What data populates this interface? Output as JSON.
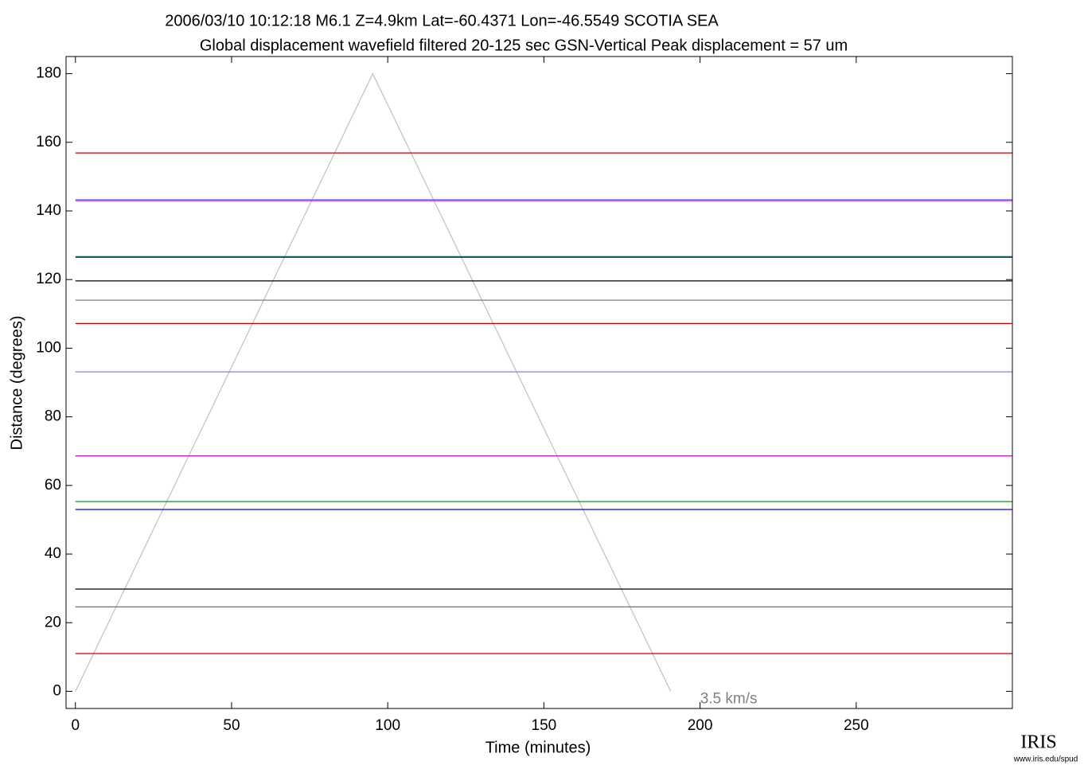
{
  "chart_data": {
    "type": "record-section",
    "title": "2006/03/10  10:12:18  M6.1  Z=4.9km  Lat=-60.4371 Lon=-46.5549  SCOTIA SEA",
    "subtitle": "Global displacement wavefield     filtered 20-125 sec     GSN-Vertical     Peak displacement =  57 um",
    "xlabel": "Time (minutes)",
    "ylabel": "Distance (degrees)",
    "xlim": [
      -3,
      300
    ],
    "ylim": [
      -5,
      185
    ],
    "xticks": [
      0,
      50,
      100,
      150,
      200,
      250
    ],
    "yticks": [
      0,
      20,
      40,
      60,
      80,
      100,
      120,
      140,
      160,
      180
    ],
    "traces": [
      {
        "distance": 156.9,
        "color": "#cc0000"
      },
      {
        "distance": 143.3,
        "color": "#8080ff"
      },
      {
        "distance": 143.0,
        "color": "#cc00cc"
      },
      {
        "distance": 126.7,
        "color": "#008000"
      },
      {
        "distance": 126.5,
        "color": "#0000ee"
      },
      {
        "distance": 119.6,
        "color": "#000000"
      },
      {
        "distance": 114.0,
        "color": "#707070"
      },
      {
        "distance": 107.2,
        "color": "#cc0000"
      },
      {
        "distance": 93.1,
        "color": "#8080ff"
      },
      {
        "distance": 68.6,
        "color": "#cc00cc"
      },
      {
        "distance": 55.3,
        "color": "#008000"
      },
      {
        "distance": 53.0,
        "color": "#0000ee"
      },
      {
        "distance": 29.8,
        "color": "#000000"
      },
      {
        "distance": 24.6,
        "color": "#707070"
      },
      {
        "distance": 11.0,
        "color": "#cc0000"
      }
    ],
    "velocity_line": {
      "label": "3.5 km/s",
      "x": [
        0,
        95.2,
        190.6
      ],
      "y": [
        0,
        180,
        0
      ],
      "color": "#c0c0c0"
    },
    "logo": {
      "name": "IRIS",
      "url": "www.iris.edu/spud"
    }
  }
}
